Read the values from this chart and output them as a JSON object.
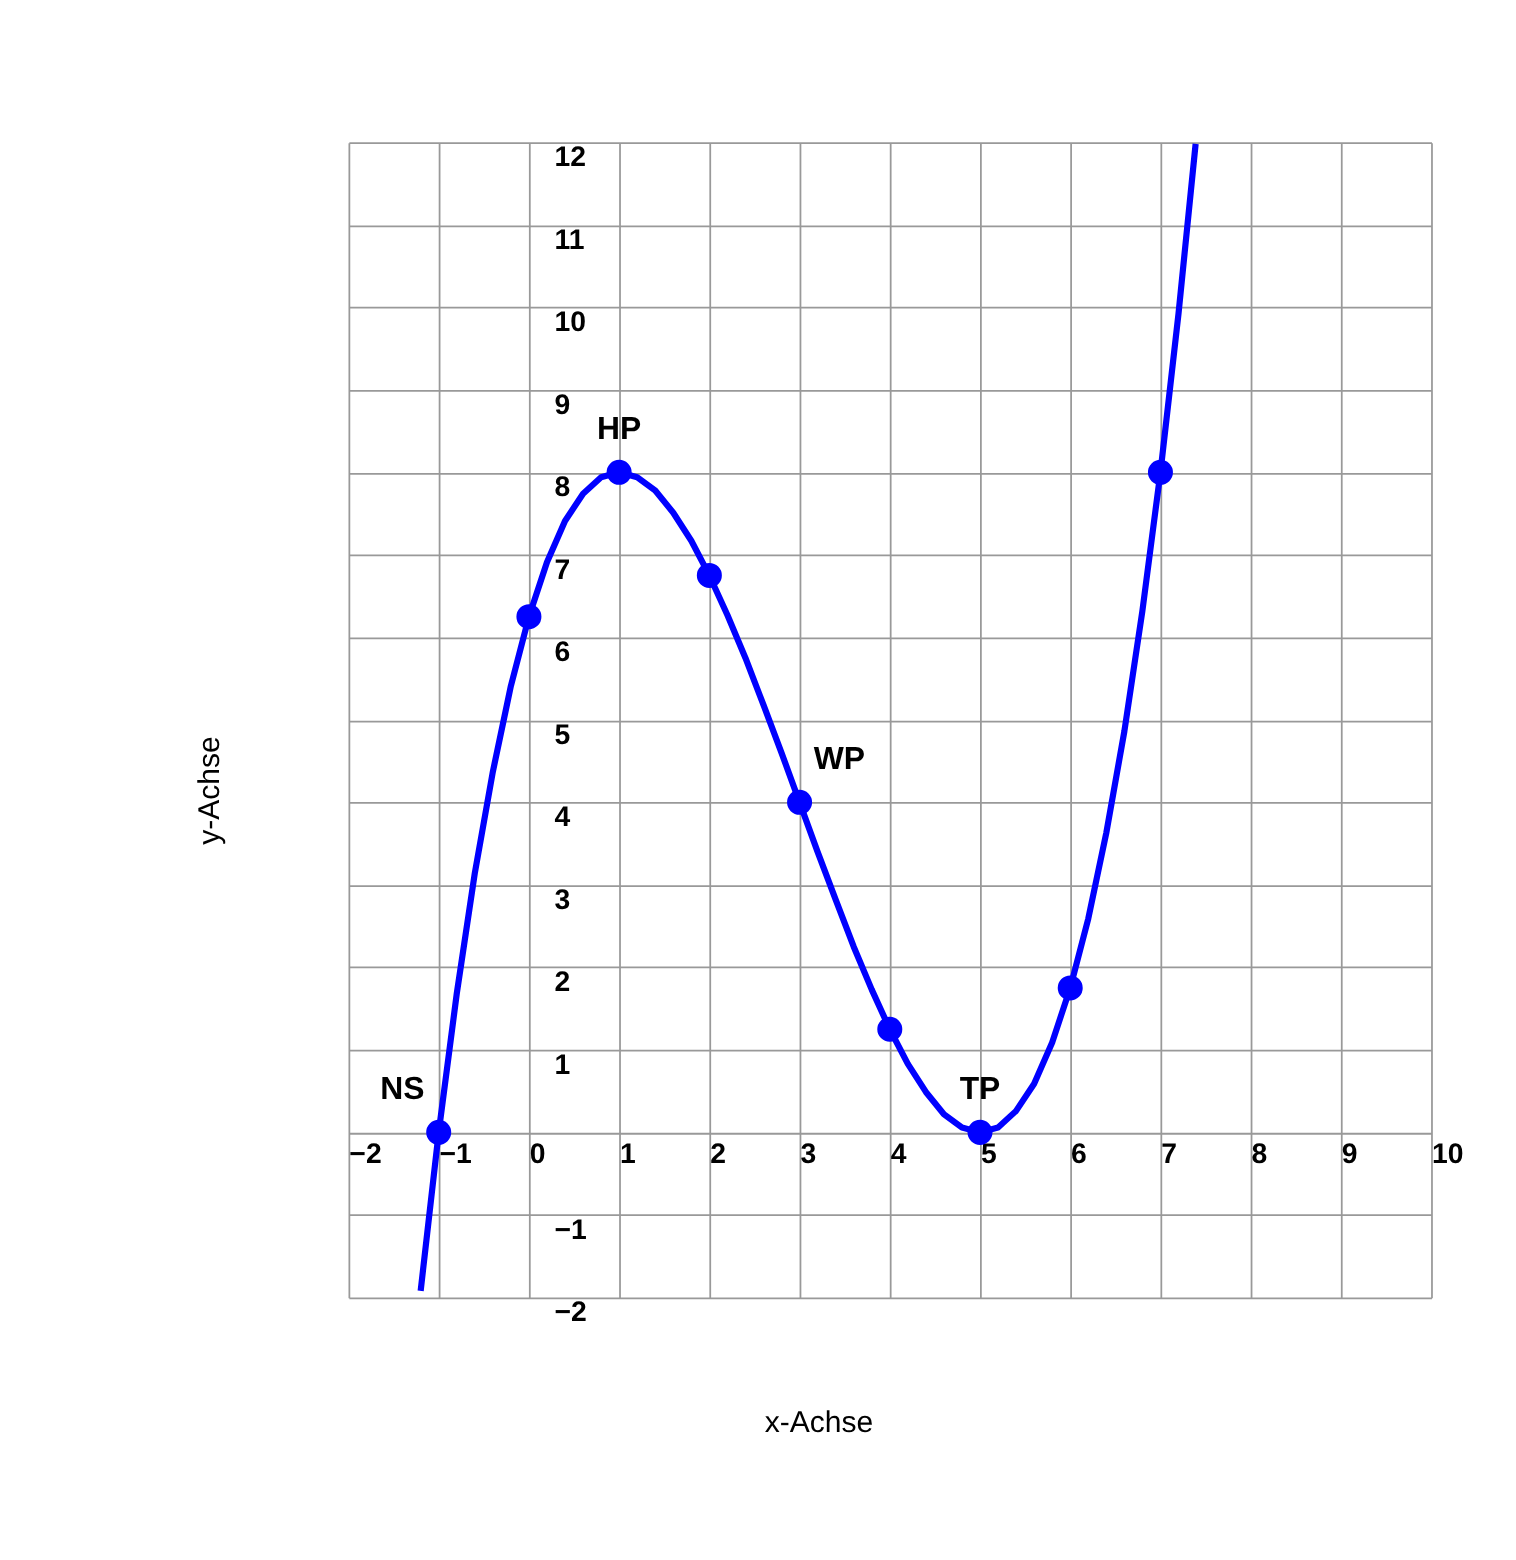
{
  "chart_data": {
    "type": "line",
    "xlabel": "x-Achse",
    "ylabel": "y-Achse",
    "xlim": [
      -2,
      10
    ],
    "ylim": [
      -2,
      12
    ],
    "xticks": [
      -2,
      -1,
      0,
      1,
      2,
      3,
      4,
      5,
      6,
      7,
      8,
      9,
      10
    ],
    "yticks": [
      -2,
      -1,
      {
        "value": 0,
        "label": null
      },
      1,
      2,
      3,
      4,
      5,
      6,
      7,
      8,
      9,
      10,
      11,
      12
    ],
    "grid": true,
    "line_style": "solid",
    "series": [
      {
        "type": "line",
        "color": "#0000ff",
        "marker": "none",
        "x": [
          -1.2,
          -1.0,
          -0.8,
          -0.6,
          -0.4,
          -0.2,
          0,
          0.2,
          0.4,
          0.6,
          0.8,
          1.0,
          1.2,
          1.4,
          1.6,
          1.8,
          2.0,
          2.2,
          2.4,
          2.6,
          2.8,
          3.0,
          3.2,
          3.4,
          3.6,
          3.8,
          4.0,
          4.2,
          4.4,
          4.6,
          4.8,
          5.0,
          5.2,
          5.4,
          5.6,
          5.8,
          6.0,
          6.2,
          6.4,
          6.6,
          6.8,
          7.0,
          7.2,
          7.39
        ],
        "values": [
          -1.92,
          0,
          1.68,
          3.14,
          4.37,
          5.41,
          6.25,
          6.91,
          7.41,
          7.74,
          7.94,
          8,
          7.94,
          7.78,
          7.51,
          7.17,
          6.75,
          6.27,
          5.75,
          5.18,
          4.6,
          4,
          3.4,
          2.82,
          2.25,
          1.73,
          1.25,
          0.83,
          0.49,
          0.22,
          0.06,
          0,
          0.06,
          0.26,
          0.59,
          1.09,
          1.75,
          2.59,
          3.63,
          4.86,
          6.32,
          8,
          9.92,
          11.98
        ]
      },
      {
        "type": "scatter",
        "color": "#0000ff",
        "marker": "circle",
        "x": [
          -1,
          0,
          1,
          2,
          3,
          4,
          5,
          6,
          7
        ],
        "values": [
          0,
          6.25,
          8,
          6.75,
          4,
          1.25,
          0,
          1.75,
          8
        ]
      }
    ],
    "annotations": [
      {
        "text": "NS",
        "x": -1,
        "y": 0
      },
      {
        "text": "HP",
        "x": 1,
        "y": 8
      },
      {
        "text": "WP",
        "x": 3,
        "y": 4
      },
      {
        "text": "TP",
        "x": 5,
        "y": 0
      }
    ]
  }
}
